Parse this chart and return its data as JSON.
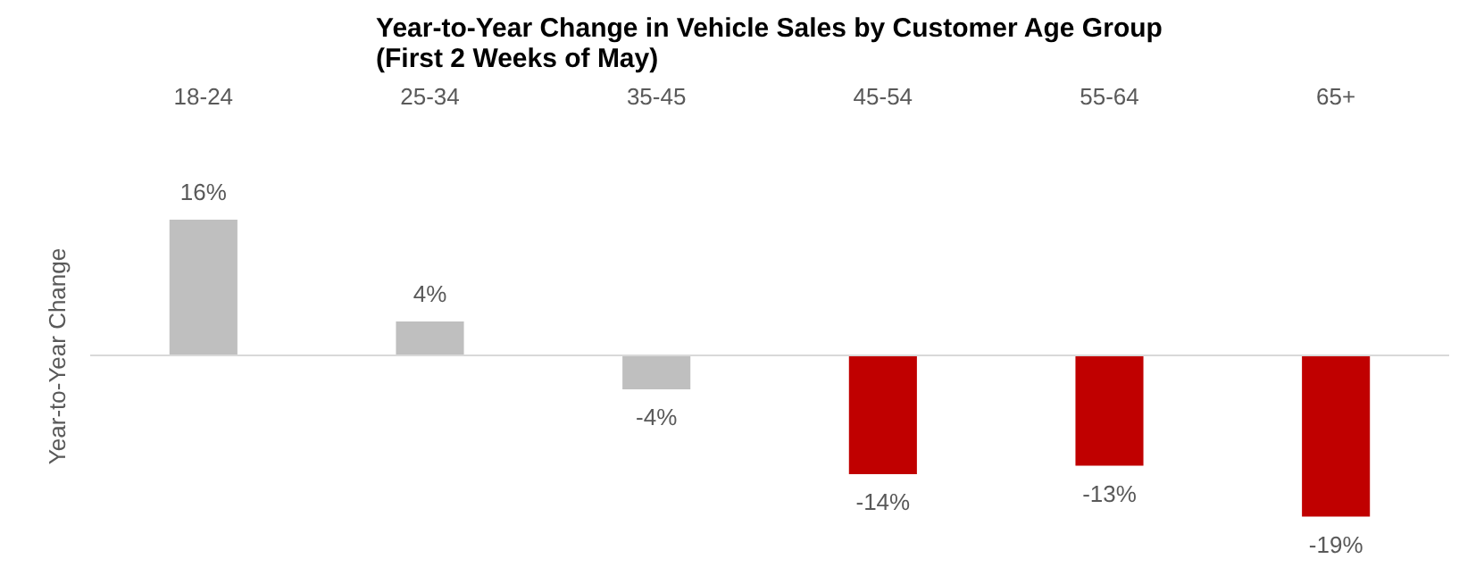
{
  "chart_data": {
    "type": "bar",
    "title": "Year-to-Year Change in Vehicle Sales by Customer Age Group\n(First 2 Weeks of May)",
    "ylabel": "Year-to-Year Change",
    "categories": [
      "18-24",
      "25-34",
      "35-45",
      "45-54",
      "55-64",
      "65+"
    ],
    "values": [
      16,
      4,
      -4,
      -14,
      -13,
      -19
    ],
    "colors": [
      "#bfbfbf",
      "#bfbfbf",
      "#bfbfbf",
      "#c00000",
      "#c00000",
      "#c00000"
    ],
    "value_labels": [
      "16%",
      "4%",
      "-4%",
      "-14%",
      "-13%",
      "-19%"
    ],
    "grid": false
  }
}
